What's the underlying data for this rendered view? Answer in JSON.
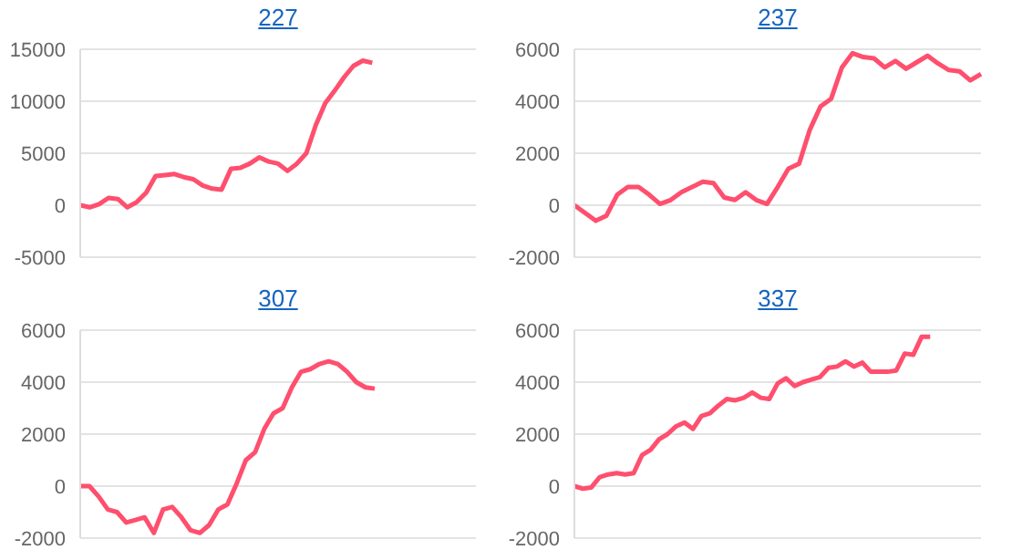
{
  "chart_data": [
    {
      "type": "line",
      "title": "227",
      "categories": [
        null,
        null,
        null,
        null,
        null,
        null,
        null,
        null,
        null,
        null,
        null,
        null,
        null,
        null,
        null,
        null,
        null,
        null,
        null,
        null,
        null,
        null,
        null,
        null,
        null,
        null,
        null,
        null,
        null,
        null,
        null,
        null,
        null,
        null,
        null,
        null,
        null,
        null,
        null,
        null,
        null,
        null,
        null
      ],
      "series": [
        {
          "color": "#ff4f6e",
          "values": [
            0,
            -200,
            100,
            700,
            600,
            -200,
            300,
            1200,
            2800,
            2900,
            3000,
            2700,
            2500,
            1900,
            1600,
            1500,
            3500,
            3600,
            4000,
            4600,
            4200,
            4000,
            3300,
            4000,
            5000,
            7700,
            9800,
            11000,
            12300,
            13400,
            13900,
            13700,
            null,
            null,
            null,
            null,
            null,
            null,
            null,
            null,
            null,
            null,
            null
          ]
        }
      ],
      "ylim": [
        -5000,
        15000
      ],
      "yticks": [
        -5000,
        0,
        5000,
        10000,
        15000
      ],
      "grid": "y",
      "tick_labels": "y",
      "marker": "none"
    },
    {
      "type": "line",
      "title": "237",
      "categories": [
        null,
        null,
        null,
        null,
        null,
        null,
        null,
        null,
        null,
        null,
        null,
        null,
        null,
        null,
        null,
        null,
        null,
        null,
        null,
        null,
        null,
        null,
        null,
        null,
        null,
        null,
        null,
        null,
        null,
        null,
        null,
        null,
        null,
        null,
        null,
        null,
        null,
        null,
        null
      ],
      "series": [
        {
          "color": "#ff4f6e",
          "values": [
            0,
            -300,
            -600,
            -400,
            400,
            700,
            700,
            400,
            50,
            200,
            500,
            700,
            900,
            850,
            300,
            200,
            500,
            200,
            50,
            700,
            1400,
            1600,
            2900,
            3800,
            4100,
            5300,
            5850,
            5700,
            5650,
            5300,
            5550,
            5250,
            5500,
            5750,
            5450,
            5200,
            5150,
            4800,
            5050
          ]
        }
      ],
      "ylim": [
        -2000,
        6000
      ],
      "yticks": [
        -2000,
        0,
        2000,
        4000,
        6000
      ],
      "grid": "y",
      "tick_labels": "y",
      "marker": "none"
    },
    {
      "type": "line",
      "title": "307",
      "categories": [
        null,
        null,
        null,
        null,
        null,
        null,
        null,
        null,
        null,
        null,
        null,
        null,
        null,
        null,
        null,
        null,
        null,
        null,
        null,
        null,
        null,
        null,
        null,
        null,
        null,
        null,
        null,
        null,
        null,
        null,
        null,
        null,
        null,
        null,
        null,
        null,
        null,
        null,
        null,
        null,
        null,
        null,
        null,
        null
      ],
      "series": [
        {
          "color": "#ff4f6e",
          "values": [
            0,
            0,
            -400,
            -900,
            -1000,
            -1400,
            -1300,
            -1200,
            -1800,
            -900,
            -800,
            -1200,
            -1700,
            -1800,
            -1500,
            -900,
            -700,
            100,
            1000,
            1300,
            2200,
            2800,
            3000,
            3800,
            4400,
            4500,
            4700,
            4800,
            4700,
            4400,
            4000,
            3800,
            3750,
            null,
            null,
            null,
            null,
            null,
            null,
            null,
            null,
            null,
            null,
            null
          ]
        }
      ],
      "ylim": [
        -2000,
        6000
      ],
      "yticks": [
        -2000,
        0,
        2000,
        4000,
        6000
      ],
      "grid": "y",
      "tick_labels": "y",
      "marker": "none"
    },
    {
      "type": "line",
      "title": "337",
      "categories": [
        null,
        null,
        null,
        null,
        null,
        null,
        null,
        null,
        null,
        null,
        null,
        null,
        null,
        null,
        null,
        null,
        null,
        null,
        null,
        null,
        null,
        null,
        null,
        null,
        null,
        null,
        null,
        null,
        null,
        null,
        null,
        null,
        null,
        null,
        null,
        null,
        null,
        null,
        null,
        null,
        null,
        null,
        null,
        null,
        null,
        null,
        null,
        null,
        null
      ],
      "series": [
        {
          "color": "#ff4f6e",
          "values": [
            0,
            -100,
            -50,
            350,
            450,
            500,
            450,
            500,
            1200,
            1400,
            1800,
            2000,
            2300,
            2450,
            2200,
            2700,
            2800,
            3100,
            3350,
            3300,
            3400,
            3600,
            3400,
            3350,
            3950,
            4150,
            3850,
            4000,
            4100,
            4200,
            4550,
            4600,
            4800,
            4600,
            4750,
            4400,
            4400,
            4400,
            4450,
            5100,
            5050,
            5750,
            5750,
            null,
            null,
            null,
            null,
            null,
            null
          ]
        }
      ],
      "ylim": [
        -2000,
        6000
      ],
      "yticks": [
        -2000,
        0,
        2000,
        4000,
        6000
      ],
      "grid": "y",
      "tick_labels": "y",
      "marker": "none"
    }
  ]
}
